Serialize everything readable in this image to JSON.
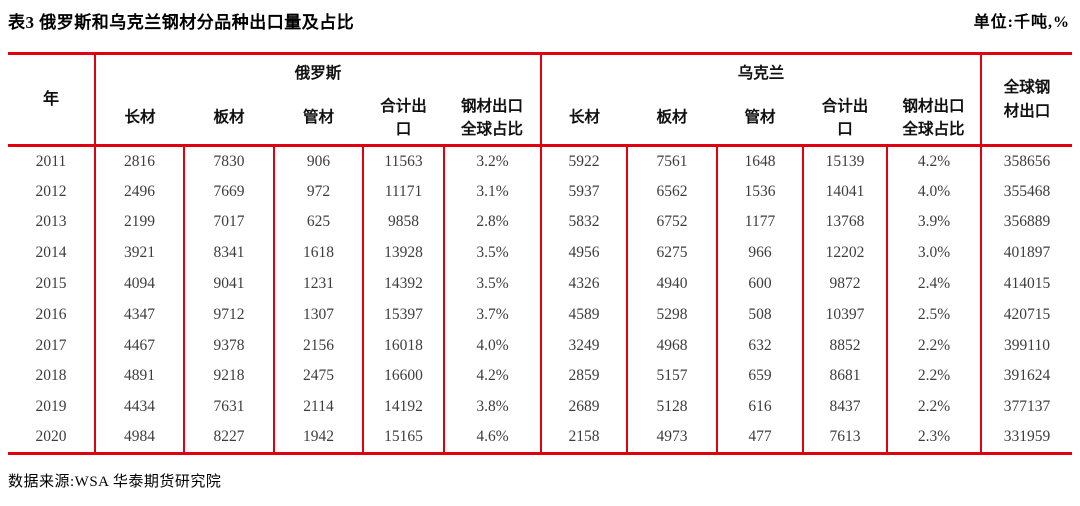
{
  "page": {
    "title": "表3  俄罗斯和乌克兰钢材分品种出口量及占比",
    "unit": "单位:千吨,%",
    "source": "数据来源:WSA 华泰期货研究院"
  },
  "colors": {
    "accent_red": "#e00010",
    "number_text": "#3d3d3d"
  },
  "table": {
    "year_header": "年",
    "russia_label": "俄罗斯",
    "ukraine_label": "乌克兰",
    "sub_headers": [
      "长材",
      "板材",
      "管材",
      "合计出\n口",
      "钢材出口\n全球占比"
    ],
    "global_header": "全球钢\n材出口",
    "rows": [
      {
        "year": "2011",
        "ru": [
          "2816",
          "7830",
          "906",
          "11563",
          "3.2%"
        ],
        "ua": [
          "5922",
          "7561",
          "1648",
          "15139",
          "4.2%"
        ],
        "global": "358656"
      },
      {
        "year": "2012",
        "ru": [
          "2496",
          "7669",
          "972",
          "11171",
          "3.1%"
        ],
        "ua": [
          "5937",
          "6562",
          "1536",
          "14041",
          "4.0%"
        ],
        "global": "355468"
      },
      {
        "year": "2013",
        "ru": [
          "2199",
          "7017",
          "625",
          "9858",
          "2.8%"
        ],
        "ua": [
          "5832",
          "6752",
          "1177",
          "13768",
          "3.9%"
        ],
        "global": "356889"
      },
      {
        "year": "2014",
        "ru": [
          "3921",
          "8341",
          "1618",
          "13928",
          "3.5%"
        ],
        "ua": [
          "4956",
          "6275",
          "966",
          "12202",
          "3.0%"
        ],
        "global": "401897"
      },
      {
        "year": "2015",
        "ru": [
          "4094",
          "9041",
          "1231",
          "14392",
          "3.5%"
        ],
        "ua": [
          "4326",
          "4940",
          "600",
          "9872",
          "2.4%"
        ],
        "global": "414015"
      },
      {
        "year": "2016",
        "ru": [
          "4347",
          "9712",
          "1307",
          "15397",
          "3.7%"
        ],
        "ua": [
          "4589",
          "5298",
          "508",
          "10397",
          "2.5%"
        ],
        "global": "420715"
      },
      {
        "year": "2017",
        "ru": [
          "4467",
          "9378",
          "2156",
          "16018",
          "4.0%"
        ],
        "ua": [
          "3249",
          "4968",
          "632",
          "8852",
          "2.2%"
        ],
        "global": "399110"
      },
      {
        "year": "2018",
        "ru": [
          "4891",
          "9218",
          "2475",
          "16600",
          "4.2%"
        ],
        "ua": [
          "2859",
          "5157",
          "659",
          "8681",
          "2.2%"
        ],
        "global": "391624"
      },
      {
        "year": "2019",
        "ru": [
          "4434",
          "7631",
          "2114",
          "14192",
          "3.8%"
        ],
        "ua": [
          "2689",
          "5128",
          "616",
          "8437",
          "2.2%"
        ],
        "global": "377137"
      },
      {
        "year": "2020",
        "ru": [
          "4984",
          "8227",
          "1942",
          "15165",
          "4.6%"
        ],
        "ua": [
          "2158",
          "4973",
          "477",
          "7613",
          "2.3%"
        ],
        "global": "331959"
      }
    ]
  }
}
